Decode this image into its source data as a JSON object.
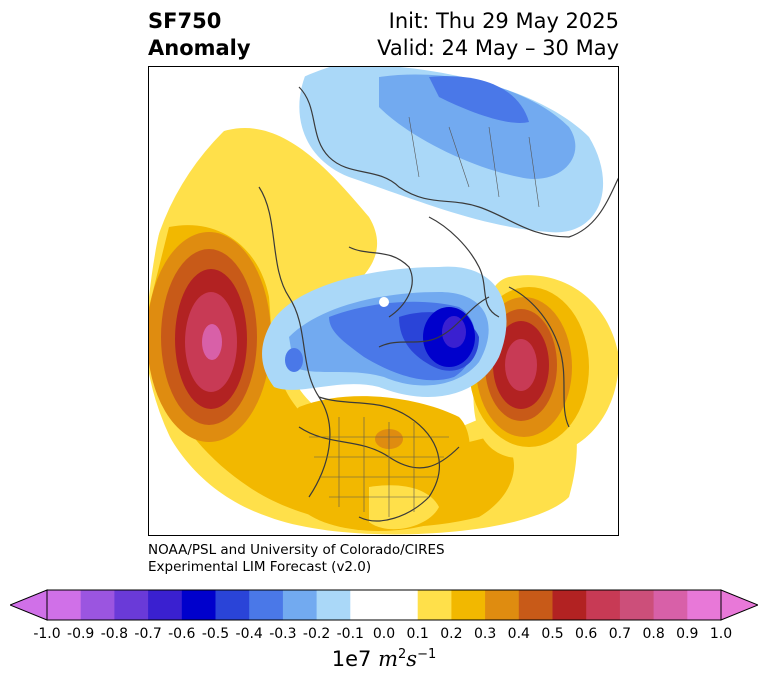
{
  "header": {
    "variable": "SF750",
    "kind": "Anomaly",
    "init": "Init: Thu 29 May 2025",
    "valid": "Valid: 24 May – 30 May"
  },
  "credit": {
    "line1": "NOAA/PSL and University of Colorado/CIRES",
    "line2": "Experimental LIM Forecast (v2.0)"
  },
  "colorbar": {
    "units_prefix": "1e7",
    "units_m": "m",
    "units_s": "s",
    "units_m_exp": "2",
    "units_s_exp": "−1",
    "ticks": [
      "-1.0",
      "-0.9",
      "-0.8",
      "-0.7",
      "-0.6",
      "-0.5",
      "-0.4",
      "-0.3",
      "-0.2",
      "-0.1",
      "0.0",
      "0.1",
      "0.2",
      "0.3",
      "0.4",
      "0.5",
      "0.6",
      "0.7",
      "0.8",
      "0.9",
      "1.0"
    ],
    "colors": [
      "#d070e8",
      "#9b55e0",
      "#6a3ad8",
      "#3a20d0",
      "#0000cc",
      "#2a44d8",
      "#4a78e8",
      "#72aaf0",
      "#aad8f8",
      "#ffffff",
      "#ffffff",
      "#ffe04a",
      "#f2b800",
      "#df8c10",
      "#c85a18",
      "#b22222",
      "#c83a55",
      "#cc4f7a",
      "#d860a8",
      "#e878d8"
    ]
  }
}
